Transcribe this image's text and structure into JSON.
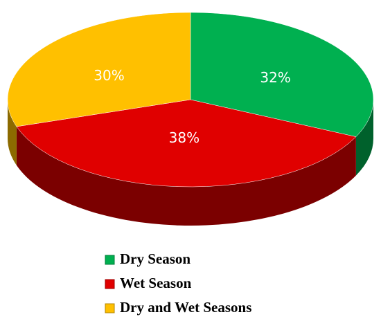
{
  "chart_data": {
    "type": "pie",
    "categories": [
      "Dry Season",
      "Wet Season",
      "Dry and Wet Seasons"
    ],
    "values": [
      32,
      38,
      30
    ],
    "value_labels": [
      "32%",
      "38%",
      "30%"
    ],
    "colors": [
      "#00b050",
      "#e00000",
      "#ffc000"
    ]
  }
}
